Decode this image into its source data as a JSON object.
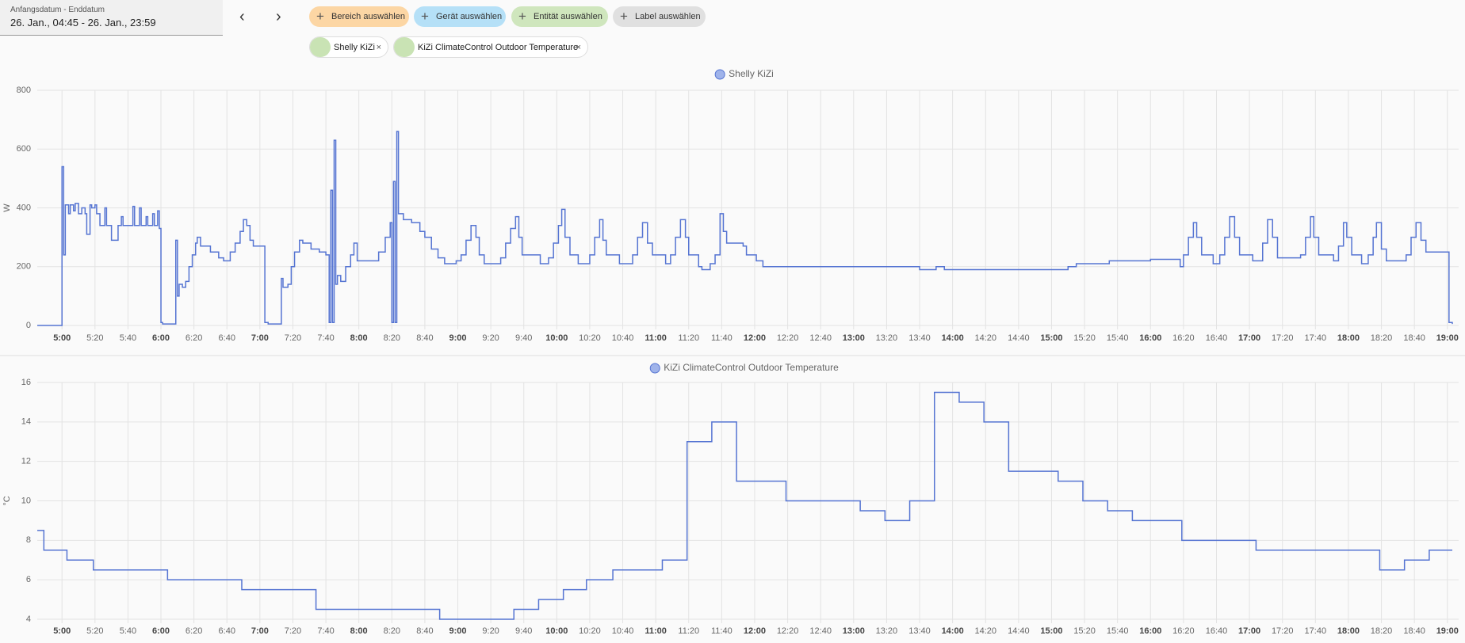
{
  "header": {
    "date_label": "Anfangsdatum - Enddatum",
    "date_range": "26. Jan., 04:45 - 26. Jan., 23:59",
    "chips": [
      "Bereich auswählen",
      "Gerät auswählen",
      "Entität auswählen",
      "Label auswählen"
    ],
    "selected": [
      "Shelly KiZi",
      "KiZi ClimateControl Outdoor Temperature"
    ]
  },
  "chart_data": [
    {
      "type": "line",
      "step": true,
      "y_label": "W",
      "grid": true,
      "xlim": [
        "4:45",
        "19:03"
      ],
      "xticks": [
        "5:00",
        "5:20",
        "5:40",
        "6:00",
        "6:20",
        "6:40",
        "7:00",
        "7:20",
        "7:40",
        "8:00",
        "8:20",
        "8:40",
        "9:00",
        "9:20",
        "9:40",
        "10:00",
        "10:20",
        "10:40",
        "11:00",
        "11:20",
        "11:40",
        "12:00",
        "12:20",
        "12:40",
        "13:00",
        "13:20",
        "13:40",
        "14:00",
        "14:20",
        "14:40",
        "15:00",
        "15:20",
        "15:40",
        "16:00",
        "16:20",
        "16:40",
        "17:00",
        "17:20",
        "17:40",
        "18:00",
        "18:20",
        "18:40",
        "19:00"
      ],
      "ylim": [
        0,
        800
      ],
      "yticks": [
        0,
        200,
        400,
        600,
        800
      ],
      "x": [
        "4:45",
        "4:59",
        "5:00",
        "5:01",
        "5:02",
        "5:04",
        "5:05",
        "5:07",
        "5:08",
        "5:10",
        "5:12",
        "5:14",
        "5:15",
        "5:17",
        "5:18",
        "5:20",
        "5:21",
        "5:23",
        "5:26",
        "5:27",
        "5:30",
        "5:34",
        "5:36",
        "5:37",
        "5:43",
        "5:44",
        "5:47",
        "5:48",
        "5:51",
        "5:52",
        "5:55",
        "5:56",
        "5:58",
        "5:59",
        "6:00",
        "6:01",
        "6:09",
        "6:10",
        "6:11",
        "6:13",
        "6:15",
        "6:17",
        "6:19",
        "6:21",
        "6:22",
        "6:24",
        "6:30",
        "6:35",
        "6:38",
        "6:42",
        "6:45",
        "6:48",
        "6:50",
        "6:52",
        "6:54",
        "6:56",
        "7:03",
        "7:05",
        "7:12",
        "7:13",
        "7:14",
        "7:17",
        "7:19",
        "7:21",
        "7:24",
        "7:26",
        "7:31",
        "7:36",
        "7:40",
        "7:42",
        "7:43",
        "7:44",
        "7:45",
        "7:46",
        "7:47",
        "7:49",
        "7:52",
        "7:55",
        "7:57",
        "7:59",
        "8:08",
        "8:12",
        "8:16",
        "8:19",
        "8:20",
        "8:21",
        "8:22",
        "8:23",
        "8:24",
        "8:27",
        "8:32",
        "8:37",
        "8:40",
        "8:44",
        "8:48",
        "8:52",
        "8:59",
        "9:02",
        "9:05",
        "9:08",
        "9:11",
        "9:13",
        "9:16",
        "9:26",
        "9:29",
        "9:32",
        "9:35",
        "9:37",
        "9:39",
        "9:50",
        "9:55",
        "9:58",
        "10:01",
        "10:03",
        "10:05",
        "10:08",
        "10:13",
        "10:20",
        "10:23",
        "10:26",
        "10:28",
        "10:30",
        "10:38",
        "10:46",
        "10:49",
        "10:52",
        "10:55",
        "10:58",
        "11:06",
        "11:09",
        "11:12",
        "11:15",
        "11:18",
        "11:20",
        "11:26",
        "11:28",
        "11:33",
        "11:36",
        "11:39",
        "11:41",
        "11:43",
        "11:53",
        "11:55",
        "12:01",
        "12:05",
        "13:40",
        "13:50",
        "13:55",
        "15:10",
        "15:15",
        "15:35",
        "16:00",
        "16:18",
        "16:20",
        "16:23",
        "16:26",
        "16:28",
        "16:31",
        "16:38",
        "16:42",
        "16:45",
        "16:48",
        "16:51",
        "16:54",
        "17:02",
        "17:08",
        "17:11",
        "17:14",
        "17:17",
        "17:31",
        "17:34",
        "17:37",
        "17:39",
        "17:42",
        "17:51",
        "17:54",
        "17:57",
        "17:59",
        "18:02",
        "18:08",
        "18:12",
        "18:15",
        "18:17",
        "18:20",
        "18:23",
        "18:35",
        "18:38",
        "18:41",
        "18:44",
        "18:47",
        "19:01",
        "19:03"
      ],
      "series": [
        {
          "name": "Shelly KiZi",
          "color": "#5574d2",
          "values": [
            0,
            0,
            540,
            240,
            410,
            380,
            410,
            390,
            415,
            380,
            400,
            380,
            310,
            410,
            400,
            410,
            380,
            340,
            400,
            340,
            290,
            340,
            370,
            340,
            405,
            340,
            400,
            340,
            370,
            340,
            380,
            340,
            390,
            330,
            10,
            5,
            290,
            100,
            140,
            130,
            150,
            200,
            240,
            280,
            300,
            270,
            250,
            230,
            220,
            250,
            280,
            320,
            360,
            340,
            290,
            270,
            10,
            5,
            5,
            160,
            130,
            140,
            200,
            250,
            290,
            280,
            260,
            250,
            240,
            10,
            460,
            10,
            630,
            140,
            170,
            150,
            200,
            240,
            280,
            220,
            220,
            250,
            300,
            350,
            10,
            490,
            10,
            660,
            380,
            360,
            350,
            320,
            300,
            260,
            230,
            210,
            220,
            240,
            290,
            340,
            300,
            240,
            210,
            230,
            280,
            330,
            370,
            300,
            240,
            210,
            230,
            280,
            340,
            395,
            300,
            240,
            210,
            240,
            300,
            360,
            290,
            240,
            210,
            240,
            300,
            350,
            280,
            240,
            210,
            240,
            300,
            360,
            300,
            240,
            200,
            190,
            210,
            240,
            380,
            320,
            280,
            270,
            240,
            220,
            200,
            190,
            200,
            190,
            200,
            210,
            220,
            225,
            200,
            240,
            300,
            350,
            300,
            240,
            210,
            240,
            300,
            370,
            300,
            240,
            220,
            280,
            360,
            300,
            230,
            240,
            300,
            370,
            300,
            240,
            220,
            270,
            350,
            300,
            240,
            210,
            240,
            300,
            350,
            260,
            220,
            240,
            300,
            350,
            290,
            250,
            10,
            5
          ]
        }
      ]
    },
    {
      "type": "line",
      "step": true,
      "y_label": "°C",
      "grid": true,
      "xlim": [
        "4:45",
        "19:03"
      ],
      "xticks": [
        "5:00",
        "5:20",
        "5:40",
        "6:00",
        "6:20",
        "6:40",
        "7:00",
        "7:20",
        "7:40",
        "8:00",
        "8:20",
        "8:40",
        "9:00",
        "9:20",
        "9:40",
        "10:00",
        "10:20",
        "10:40",
        "11:00",
        "11:20",
        "11:40",
        "12:00",
        "12:20",
        "12:40",
        "13:00",
        "13:20",
        "13:40",
        "14:00",
        "14:20",
        "14:40",
        "15:00",
        "15:20",
        "15:40",
        "16:00",
        "16:20",
        "16:40",
        "17:00",
        "17:20",
        "17:40",
        "18:00",
        "18:20",
        "18:40",
        "19:00"
      ],
      "ylim": [
        4,
        16
      ],
      "yticks": [
        4,
        6,
        8,
        10,
        12,
        14,
        16
      ],
      "x": [
        "4:45",
        "4:49",
        "5:03",
        "5:19",
        "6:04",
        "6:49",
        "7:34",
        "8:49",
        "9:34",
        "9:49",
        "10:04",
        "10:18",
        "10:34",
        "11:04",
        "11:19",
        "11:34",
        "11:49",
        "12:19",
        "13:04",
        "13:19",
        "13:34",
        "13:49",
        "14:04",
        "14:19",
        "14:34",
        "15:04",
        "15:19",
        "15:34",
        "15:49",
        "16:19",
        "17:04",
        "18:19",
        "18:34",
        "18:49",
        "19:03"
      ],
      "series": [
        {
          "name": "KiZi ClimateControl Outdoor Temperature",
          "color": "#5574d2",
          "values": [
            8.5,
            7.5,
            7,
            6.5,
            6,
            5.5,
            4.5,
            4,
            4.5,
            5,
            5.5,
            6,
            6.5,
            7,
            13,
            14,
            11,
            10,
            9.5,
            9,
            10,
            15.5,
            15,
            14,
            11.5,
            11,
            10,
            9.5,
            9,
            8,
            7.5,
            6.5,
            7,
            7.5,
            7.5
          ]
        }
      ]
    }
  ]
}
